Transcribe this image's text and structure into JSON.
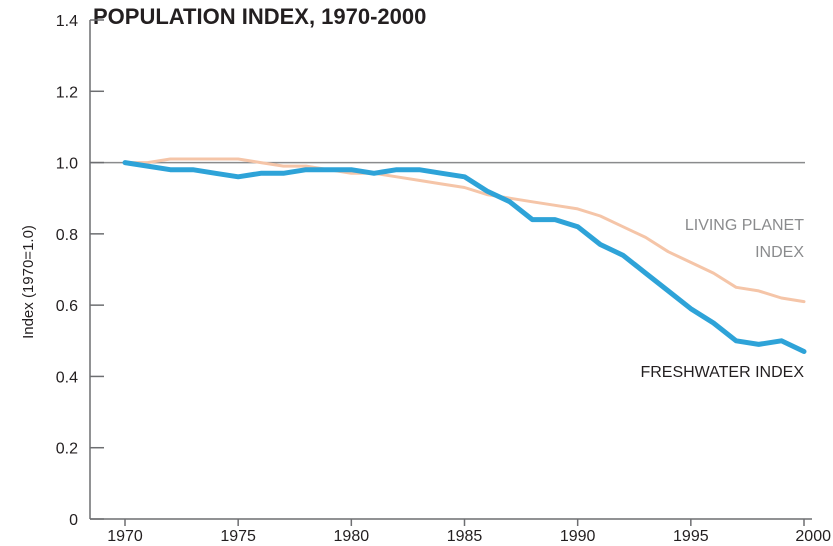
{
  "chart_data": {
    "type": "line",
    "title": "POPULATION INDEX, 1970-2000",
    "xlabel": "",
    "ylabel": "Index (1970=1.0)",
    "xlim": [
      1970,
      2000
    ],
    "ylim": [
      0,
      1.4
    ],
    "x_ticks": [
      "1970",
      "1975",
      "1980",
      "1985",
      "1990",
      "1995",
      "2000"
    ],
    "y_ticks": [
      "0",
      "0.2",
      "0.4",
      "0.6",
      "0.8",
      "1.0",
      "1.2",
      "1.4"
    ],
    "reference_line": 1.0,
    "grid": false,
    "series": [
      {
        "name": "LIVING PLANET INDEX",
        "label_lines": [
          "LIVING PLANET",
          "INDEX"
        ],
        "color": "#f5c5a8",
        "x": [
          1970,
          1971,
          1972,
          1973,
          1974,
          1975,
          1976,
          1977,
          1978,
          1979,
          1980,
          1981,
          1982,
          1983,
          1984,
          1985,
          1986,
          1987,
          1988,
          1989,
          1990,
          1991,
          1992,
          1993,
          1994,
          1995,
          1996,
          1997,
          1998,
          1999,
          2000
        ],
        "values": [
          1.0,
          1.0,
          1.01,
          1.01,
          1.01,
          1.01,
          1.0,
          0.99,
          0.99,
          0.98,
          0.97,
          0.97,
          0.96,
          0.95,
          0.94,
          0.93,
          0.91,
          0.9,
          0.89,
          0.88,
          0.87,
          0.85,
          0.82,
          0.79,
          0.75,
          0.72,
          0.69,
          0.65,
          0.64,
          0.62,
          0.61
        ]
      },
      {
        "name": "FRESHWATER INDEX",
        "label_lines": [
          "FRESHWATER INDEX"
        ],
        "color": "#2ea3d8",
        "x": [
          1970,
          1971,
          1972,
          1973,
          1974,
          1975,
          1976,
          1977,
          1978,
          1979,
          1980,
          1981,
          1982,
          1983,
          1984,
          1985,
          1986,
          1987,
          1988,
          1989,
          1990,
          1991,
          1992,
          1993,
          1994,
          1995,
          1996,
          1997,
          1998,
          1999,
          2000
        ],
        "values": [
          1.0,
          0.99,
          0.98,
          0.98,
          0.97,
          0.96,
          0.97,
          0.97,
          0.98,
          0.98,
          0.98,
          0.97,
          0.98,
          0.98,
          0.97,
          0.96,
          0.92,
          0.89,
          0.84,
          0.84,
          0.82,
          0.77,
          0.74,
          0.69,
          0.64,
          0.59,
          0.55,
          0.5,
          0.49,
          0.5,
          0.47
        ]
      }
    ]
  }
}
